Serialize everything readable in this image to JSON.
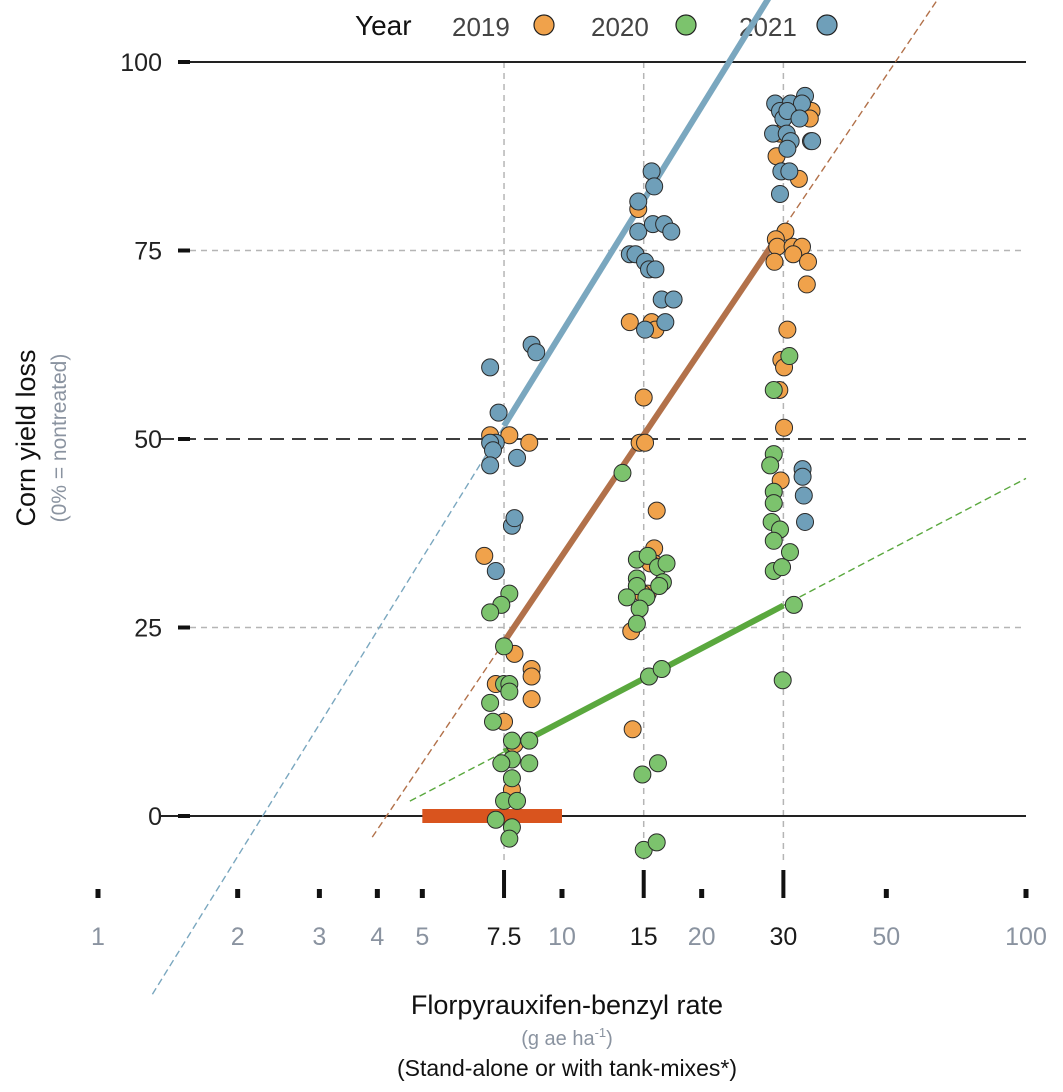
{
  "chart_data": {
    "type": "scatter",
    "title": "",
    "legend": {
      "title": "Year",
      "placement": "top",
      "entries": [
        {
          "name": "2019",
          "color": "#f0a24b"
        },
        {
          "name": "2020",
          "color": "#7cc36d"
        },
        {
          "name": "2021",
          "color": "#6f9fb9"
        }
      ]
    },
    "ylabel": "Corn yield loss",
    "ylabel_sub": "(0% = nontreated)",
    "xlabel": "Florpyrauxifen-benzyl rate",
    "xlabel_units": "(g ae ha",
    "xlabel_units_sup": "-1",
    "xlabel_units_close": ")",
    "xlabel_note": "(Stand-alone or with tank-mixes*)",
    "xscale": "log",
    "xlim": [
      1,
      100
    ],
    "ylim": [
      -8,
      100
    ],
    "yticks": [
      {
        "value": 0,
        "label": "0"
      },
      {
        "value": 25,
        "label": "25"
      },
      {
        "value": 50,
        "label": "50"
      },
      {
        "value": 75,
        "label": "75"
      },
      {
        "value": 100,
        "label": "100"
      }
    ],
    "xticks": [
      {
        "value": 1,
        "label": "1",
        "major": false
      },
      {
        "value": 2,
        "label": "2",
        "major": false
      },
      {
        "value": 3,
        "label": "3",
        "major": false
      },
      {
        "value": 4,
        "label": "4",
        "major": false
      },
      {
        "value": 5,
        "label": "5",
        "major": false
      },
      {
        "value": 7.5,
        "label": "7.5",
        "major": true
      },
      {
        "value": 10,
        "label": "10",
        "major": false
      },
      {
        "value": 15,
        "label": "15",
        "major": true
      },
      {
        "value": 20,
        "label": "20",
        "major": false
      },
      {
        "value": 30,
        "label": "30",
        "major": true
      },
      {
        "value": 50,
        "label": "50",
        "major": false
      },
      {
        "value": 100,
        "label": "100",
        "major": false
      }
    ],
    "reference_lines": [
      0,
      50,
      100
    ],
    "grid_dashed_y": [
      25,
      75
    ],
    "grid_dashed_x": [
      7.5,
      15,
      30
    ],
    "rate_range_bar": {
      "from": 5,
      "to": 10,
      "y": 0,
      "color": "#d9541e"
    },
    "fits": [
      {
        "name": "2021",
        "color": "#7aa7bf",
        "a": -35.3,
        "b": 43.2,
        "fit_from": 7.5,
        "fit_to": 30,
        "extend_from": 1.31,
        "extend_to": 43
      },
      {
        "name": "2019",
        "color": "#b2714a",
        "a": -56.7,
        "b": 39.6,
        "fit_from": 7.5,
        "fit_to": 30,
        "extend_from": 3.9,
        "extend_to": 68
      },
      {
        "name": "2020",
        "color": "#5aa83e",
        "a": -19.7,
        "b": 14.0,
        "fit_from": 7.5,
        "fit_to": 30,
        "extend_from": 4.7,
        "extend_to": 100
      }
    ],
    "series": [
      {
        "name": "2019",
        "color": "#f0a24b",
        "points": [
          [
            7.0,
            50.5
          ],
          [
            7.7,
            50.5
          ],
          [
            8.5,
            49.5
          ],
          [
            6.8,
            34.5
          ],
          [
            7.9,
            21.5
          ],
          [
            8.6,
            19.5
          ],
          [
            8.6,
            18.5
          ],
          [
            8.6,
            15.5
          ],
          [
            7.2,
            17.5
          ],
          [
            7.5,
            12.5
          ],
          [
            7.9,
            9.5
          ],
          [
            7.8,
            3.5
          ],
          [
            14.6,
            80.5
          ],
          [
            15.0,
            55.5
          ],
          [
            14.7,
            49.5
          ],
          [
            15.1,
            49.5
          ],
          [
            14.0,
            65.5
          ],
          [
            15.6,
            65.5
          ],
          [
            15.9,
            64.5
          ],
          [
            16.0,
            40.5
          ],
          [
            15.8,
            35.5
          ],
          [
            15.8,
            33.5
          ],
          [
            15.5,
            33.5
          ],
          [
            15.3,
            29.5
          ],
          [
            14.9,
            29.5
          ],
          [
            14.5,
            30.5
          ],
          [
            14.1,
            24.5
          ],
          [
            14.2,
            11.5
          ],
          [
            29.0,
            87.5
          ],
          [
            29.5,
            90.5
          ],
          [
            34.5,
            93.5
          ],
          [
            34.2,
            92.5
          ],
          [
            32.4,
            84.5
          ],
          [
            30.3,
            77.5
          ],
          [
            28.9,
            76.5
          ],
          [
            29.1,
            75.5
          ],
          [
            31.4,
            75.5
          ],
          [
            32.9,
            75.5
          ],
          [
            31.5,
            74.5
          ],
          [
            28.7,
            73.5
          ],
          [
            33.9,
            73.5
          ],
          [
            33.7,
            70.5
          ],
          [
            30.6,
            64.5
          ],
          [
            29.7,
            60.5
          ],
          [
            30.1,
            59.5
          ],
          [
            29.4,
            56.5
          ],
          [
            30.1,
            51.5
          ],
          [
            29.6,
            44.5
          ]
        ]
      },
      {
        "name": "2020",
        "color": "#7cc36d",
        "points": [
          [
            7.7,
            29.5
          ],
          [
            7.4,
            28.0
          ],
          [
            7.0,
            27.0
          ],
          [
            7.5,
            22.5
          ],
          [
            7.5,
            17.5
          ],
          [
            7.7,
            17.5
          ],
          [
            7.7,
            16.5
          ],
          [
            7.0,
            15.0
          ],
          [
            7.1,
            12.5
          ],
          [
            8.5,
            10.0
          ],
          [
            7.8,
            10.0
          ],
          [
            7.8,
            7.5
          ],
          [
            7.4,
            7.0
          ],
          [
            8.5,
            7.0
          ],
          [
            7.8,
            5.0
          ],
          [
            7.5,
            2.0
          ],
          [
            8.0,
            2.0
          ],
          [
            7.2,
            -0.5
          ],
          [
            7.8,
            -1.5
          ],
          [
            7.7,
            -3.0
          ],
          [
            13.5,
            45.5
          ],
          [
            14.5,
            34.0
          ],
          [
            15.3,
            34.5
          ],
          [
            16.1,
            33.0
          ],
          [
            16.8,
            33.5
          ],
          [
            14.5,
            31.5
          ],
          [
            14.5,
            30.5
          ],
          [
            16.5,
            31.0
          ],
          [
            16.2,
            30.5
          ],
          [
            13.8,
            29.0
          ],
          [
            15.2,
            29.0
          ],
          [
            14.7,
            27.5
          ],
          [
            14.5,
            25.5
          ],
          [
            15.4,
            18.5
          ],
          [
            16.4,
            19.5
          ],
          [
            14.9,
            5.5
          ],
          [
            16.1,
            7.0
          ],
          [
            15.0,
            -4.5
          ],
          [
            16.0,
            -3.5
          ],
          [
            30.9,
            61.0
          ],
          [
            28.6,
            56.5
          ],
          [
            28.6,
            48.0
          ],
          [
            28.1,
            46.5
          ],
          [
            28.6,
            43.0
          ],
          [
            28.6,
            41.5
          ],
          [
            28.3,
            39.0
          ],
          [
            29.5,
            38.0
          ],
          [
            28.6,
            36.5
          ],
          [
            31.0,
            35.0
          ],
          [
            28.6,
            32.5
          ],
          [
            29.8,
            33.0
          ],
          [
            31.6,
            28.0
          ],
          [
            29.9,
            18.0
          ]
        ]
      },
      {
        "name": "2021",
        "color": "#6f9fb9",
        "points": [
          [
            7.0,
            59.5
          ],
          [
            7.3,
            53.5
          ],
          [
            7.2,
            49.5
          ],
          [
            7.0,
            49.5
          ],
          [
            7.1,
            48.5
          ],
          [
            7.0,
            46.5
          ],
          [
            8.0,
            47.5
          ],
          [
            8.6,
            62.5
          ],
          [
            8.8,
            61.5
          ],
          [
            7.8,
            38.5
          ],
          [
            7.9,
            39.5
          ],
          [
            7.2,
            32.5
          ],
          [
            14.6,
            81.5
          ],
          [
            15.6,
            85.5
          ],
          [
            15.8,
            83.5
          ],
          [
            14.6,
            77.5
          ],
          [
            15.7,
            78.5
          ],
          [
            16.6,
            78.5
          ],
          [
            17.2,
            77.5
          ],
          [
            14.0,
            74.5
          ],
          [
            14.4,
            74.5
          ],
          [
            15.1,
            73.5
          ],
          [
            15.4,
            72.5
          ],
          [
            15.9,
            72.5
          ],
          [
            16.4,
            68.5
          ],
          [
            17.4,
            68.5
          ],
          [
            16.7,
            65.5
          ],
          [
            15.1,
            64.5
          ],
          [
            28.8,
            94.5
          ],
          [
            31.1,
            94.5
          ],
          [
            33.4,
            95.5
          ],
          [
            32.9,
            94.5
          ],
          [
            29.5,
            93.5
          ],
          [
            30.0,
            92.5
          ],
          [
            30.6,
            93.5
          ],
          [
            32.5,
            92.5
          ],
          [
            28.5,
            90.5
          ],
          [
            30.5,
            90.5
          ],
          [
            31.1,
            89.5
          ],
          [
            34.4,
            89.5
          ],
          [
            34.6,
            89.5
          ],
          [
            30.6,
            88.5
          ],
          [
            29.7,
            85.5
          ],
          [
            30.9,
            85.5
          ],
          [
            29.5,
            82.5
          ],
          [
            33.0,
            46.0
          ],
          [
            33.0,
            45.0
          ],
          [
            33.2,
            42.5
          ],
          [
            33.4,
            39.0
          ]
        ]
      }
    ]
  }
}
